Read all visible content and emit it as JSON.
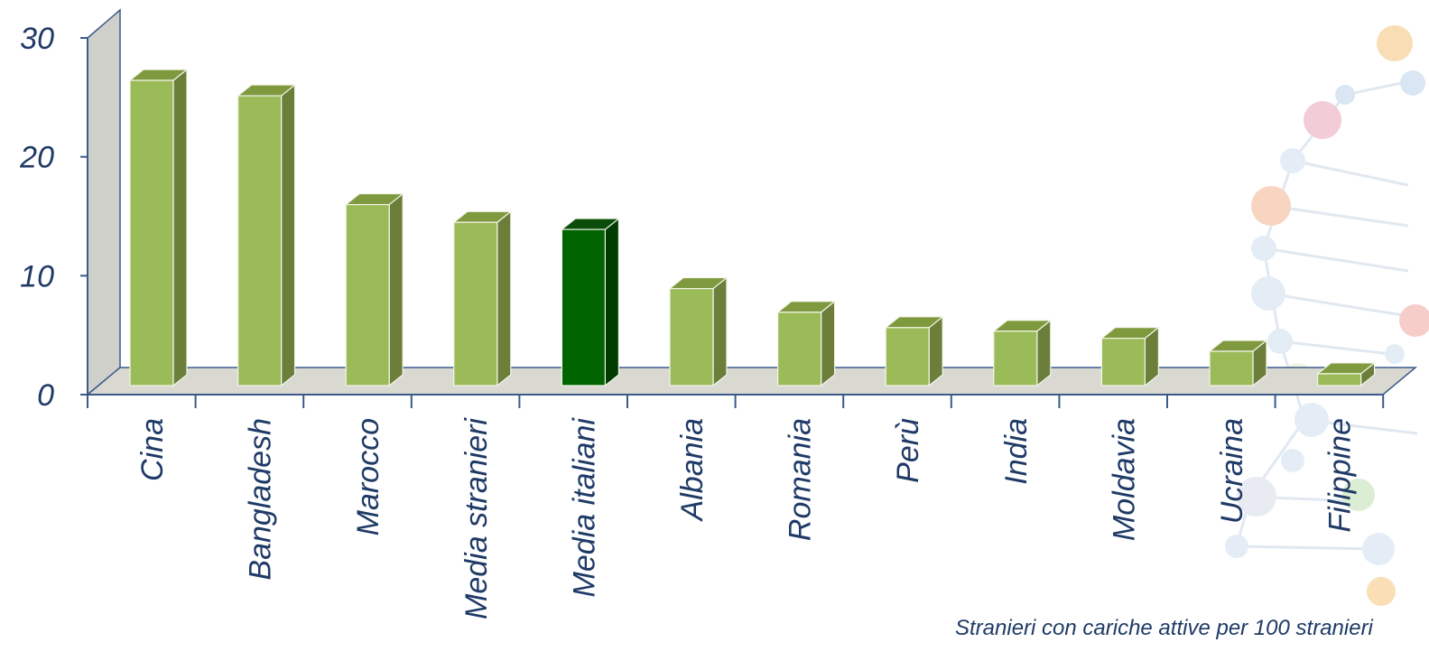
{
  "chart_data": {
    "type": "bar",
    "title": "",
    "xlabel": "",
    "ylabel": "",
    "ylim": [
      0,
      30
    ],
    "yticks": [
      0,
      10,
      20,
      30
    ],
    "categories": [
      "Cina",
      "Bangladesh",
      "Marocco",
      "Media stranieri",
      "Media italiani",
      "Albania",
      "Romania",
      "Perù",
      "India",
      "Moldavia",
      "Ucraina",
      "Filippine"
    ],
    "values": [
      25.8,
      24.5,
      15.3,
      13.8,
      13.2,
      8.2,
      6.2,
      4.9,
      4.6,
      4.0,
      2.9,
      1.0
    ],
    "highlight_index": 4,
    "grid": false,
    "annotation": "Stranieri con cariche attive per 100 stranieri",
    "colors": {
      "bar_front": "#9bbb59",
      "bar_side": "#6b7f3a",
      "bar_top": "#7f9a3e",
      "highlight_front": "#006400",
      "highlight_side": "#003c00",
      "highlight_top": "#0a4d0a",
      "axis": "#3b5a8a",
      "text": "#1f3a66",
      "wall": "#cfd0c9",
      "floor": "#d9d9d2"
    }
  }
}
